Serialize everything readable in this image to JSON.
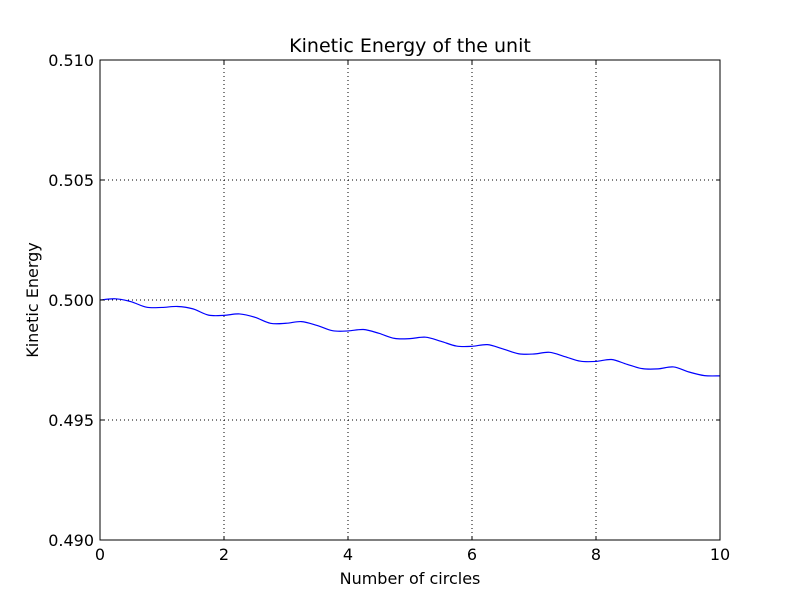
{
  "chart_data": {
    "type": "line",
    "title": "Kinetic Energy of the unit",
    "xlabel": "Number of circles",
    "ylabel": "Kinetic Energy",
    "xlim": [
      0,
      10
    ],
    "ylim": [
      0.49,
      0.51
    ],
    "grid": true,
    "line_color": "#0000ff",
    "xticks": [
      {
        "value": 0,
        "label": "0"
      },
      {
        "value": 2,
        "label": "2"
      },
      {
        "value": 4,
        "label": "4"
      },
      {
        "value": 6,
        "label": "6"
      },
      {
        "value": 8,
        "label": "8"
      },
      {
        "value": 10,
        "label": "10"
      }
    ],
    "yticks": [
      {
        "value": 0.49,
        "label": "0.490"
      },
      {
        "value": 0.495,
        "label": "0.495"
      },
      {
        "value": 0.5,
        "label": "0.500"
      },
      {
        "value": 0.505,
        "label": "0.505"
      },
      {
        "value": 0.51,
        "label": "0.510"
      }
    ],
    "series": [
      {
        "x": [
          0,
          0.25,
          0.5,
          0.75,
          1.0,
          1.25,
          1.5,
          1.75,
          2.0,
          2.25,
          2.5,
          2.75,
          3.0,
          3.25,
          3.5,
          3.75,
          4.0,
          4.25,
          4.5,
          4.75,
          5.0,
          5.25,
          5.5,
          5.75,
          6.0,
          6.25,
          6.5,
          6.75,
          7.0,
          7.25,
          7.5,
          7.75,
          8.0,
          8.25,
          8.5,
          8.75,
          9.0,
          9.25,
          9.5,
          9.75,
          10.0
        ],
        "values": [
          0.5,
          0.50005,
          0.49993,
          0.4997,
          0.49969,
          0.49973,
          0.49963,
          0.49937,
          0.49936,
          0.49942,
          0.49928,
          0.49903,
          0.49903,
          0.4991,
          0.49894,
          0.49872,
          0.49871,
          0.49877,
          0.49861,
          0.4984,
          0.49839,
          0.49845,
          0.49828,
          0.49808,
          0.49807,
          0.49814,
          0.49796,
          0.49776,
          0.49775,
          0.49782,
          0.49764,
          0.49745,
          0.49744,
          0.49752,
          0.49732,
          0.49714,
          0.49713,
          0.49721,
          0.497,
          0.49685,
          0.49684
        ]
      }
    ]
  }
}
